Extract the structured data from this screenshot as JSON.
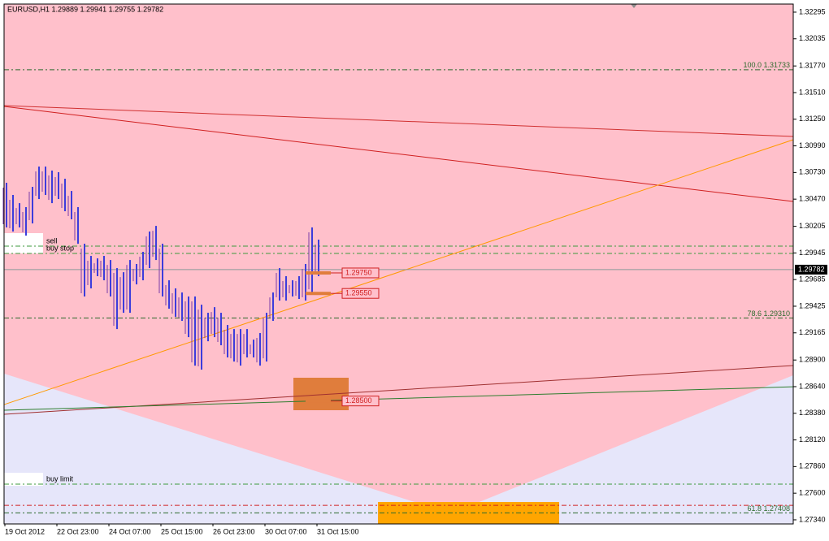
{
  "chart_data": {
    "type": "range-bar",
    "title": "EURUSD,H1  1.29889 1.29941 1.29755 1.29782",
    "color": "#3c3cdc",
    "categories": [
      "19 Oct 2012",
      null,
      null,
      null,
      null,
      null,
      null,
      null,
      "22 Oct 23:00",
      null,
      null,
      null,
      null,
      null,
      null,
      null,
      "24 Oct 07:00",
      null,
      null,
      null,
      null,
      null,
      null,
      null,
      "25 Oct 15:00",
      null,
      null,
      null,
      null,
      null,
      null,
      null,
      "26 Oct 23:00",
      null,
      null,
      null,
      null,
      null,
      null,
      null,
      "30 Oct 07:00",
      null,
      null,
      null,
      null,
      null,
      null,
      null,
      "31 Oct 15:00"
    ],
    "highs": [
      1.3063,
      1.30511,
      1.30431,
      1.30392,
      1.3059,
      1.30788,
      1.30788,
      1.30749,
      1.30733,
      1.30669,
      1.3055,
      1.30392,
      1.30035,
      1.29916,
      1.29892,
      1.29916,
      1.29876,
      1.29797,
      1.29757,
      1.29876,
      1.29837,
      1.29956,
      1.30154,
      1.30209,
      1.30035,
      1.29678,
      1.29599,
      1.29559,
      1.2952,
      1.2952,
      1.2944,
      1.29361,
      1.29416,
      1.29361,
      1.29242,
      1.29202,
      1.29202,
      1.29202,
      1.29099,
      1.29163,
      1.29361,
      1.29559,
      1.29797,
      1.29718,
      1.29678,
      1.29718,
      1.29837,
      1.30194,
      1.30075
    ],
    "lows": [
      1.30194,
      1.30154,
      1.30194,
      1.30114,
      1.30233,
      1.30471,
      1.30511,
      1.30431,
      1.30471,
      1.30352,
      1.30273,
      1.30035,
      1.2952,
      1.29599,
      1.29718,
      1.29678,
      1.2952,
      1.29202,
      1.29361,
      1.29361,
      1.29638,
      1.29678,
      1.29797,
      1.29876,
      1.2952,
      1.29401,
      1.29321,
      1.29282,
      1.29123,
      1.28845,
      1.28806,
      1.29083,
      1.29123,
      1.29044,
      1.28925,
      1.28885,
      1.28845,
      1.28925,
      1.28925,
      1.28845,
      1.28885,
      1.29282,
      1.2948,
      1.2948,
      1.2952,
      1.29496,
      1.2948,
      1.29559,
      1.29718
    ],
    "ylim": [
      1.273,
      1.32374
    ],
    "yticks": [
      1.32295,
      1.32035,
      {
        "value": 1.3177,
        "label": "1.31770"
      },
      {
        "value": 1.3151,
        "label": "1.31510"
      },
      {
        "value": 1.3125,
        "label": "1.31250"
      },
      {
        "value": 1.3099,
        "label": "1.30990"
      },
      {
        "value": 1.3073,
        "label": "1.30730"
      },
      {
        "value": 1.3047,
        "label": "1.30470"
      },
      1.30205,
      1.29945,
      1.29685,
      1.29425,
      1.29165,
      {
        "value": 1.289,
        "label": "1.28900"
      },
      {
        "value": 1.2864,
        "label": "1.28640"
      },
      {
        "value": 1.2838,
        "label": "1.28380"
      },
      {
        "value": 1.2812,
        "label": "1.28120"
      },
      {
        "value": 1.2786,
        "label": "1.27860"
      },
      {
        "value": 1.276,
        "label": "1.27600"
      },
      {
        "value": 1.2734,
        "label": "1.27340"
      }
    ],
    "levels": [
      {
        "value": 1.31733,
        "label": "100.0 1.31733",
        "color": "#2e6b2e",
        "anchor": "right"
      },
      {
        "value": 1.2931,
        "label": "78.6 1.29310",
        "color": "#2e6b2e",
        "anchor": "right"
      },
      {
        "value": 1.27408,
        "label": "61.8 1.27408",
        "color": "#2e6b2e",
        "anchor": "right"
      },
      {
        "value": 1.30011,
        "label": "sell",
        "color": "#3c9a3c",
        "anchor": "left"
      },
      {
        "value": 1.2994,
        "label": "buy stop",
        "color": "#3c9a3c",
        "anchor": "left"
      },
      {
        "value": 1.27688,
        "label": "buy limit",
        "color": "#3c9a3c",
        "anchor": "left"
      },
      {
        "value": 1.27481,
        "color": "#d02020"
      }
    ],
    "orders": [
      {
        "value": 1.2975,
        "label": "1.29750"
      },
      {
        "value": 1.2955,
        "label": "1.29550"
      },
      {
        "value": 1.285,
        "label": "1.28500"
      }
    ],
    "current": {
      "value": 1.29782,
      "label": "1.29782"
    },
    "trendlines": [
      {
        "color": "#d03030",
        "start": 1.31383,
        "end": 1.31082
      },
      {
        "color": "#d02020",
        "start": 1.31375,
        "end": 1.30447
      },
      {
        "color": "#ff9900",
        "start": 1.28465,
        "end": 1.3105
      },
      {
        "color": "#a03030",
        "start": 1.2837,
        "end": 1.28846
      },
      {
        "color": "#2e7d2e",
        "start": 1.2841,
        "end": 1.28639
      }
    ]
  }
}
